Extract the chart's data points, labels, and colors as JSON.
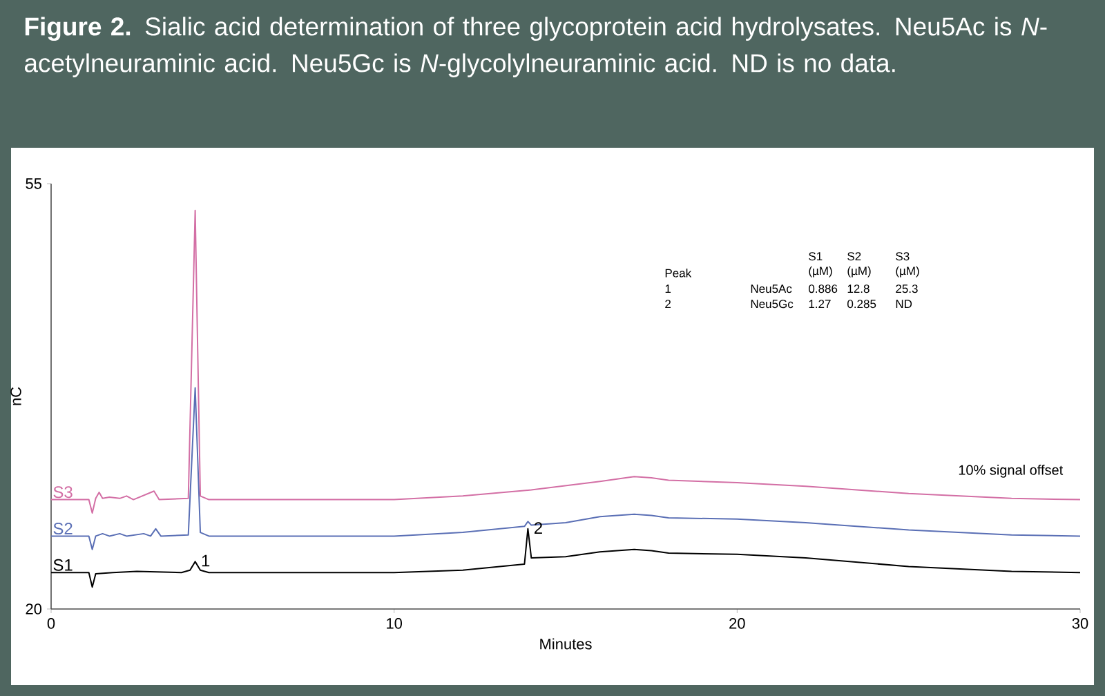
{
  "chart_data": {
    "type": "line",
    "title": "**Figure 2.** Sialic acid determination of three glycoprotein acid hydrolysates. Neu5Ac is *N*-acetylneuraminic acid. Neu5Gc is *N*-glycolylneuraminic acid. ND is no data.",
    "xlabel": "Minutes",
    "ylabel": "nC",
    "xlim": [
      0,
      30
    ],
    "ylim": [
      20,
      55
    ],
    "xticks": [
      0,
      10,
      20,
      30
    ],
    "yticks": [
      20,
      55
    ],
    "legend": false,
    "grid": false,
    "series": [
      {
        "name": "S1",
        "color": "#000000",
        "x": [
          0,
          1.1,
          1.2,
          1.3,
          1.8,
          2.5,
          3.8,
          4.05,
          4.2,
          4.35,
          4.6,
          8,
          10,
          12,
          13.8,
          13.9,
          14.0,
          15,
          16,
          17,
          17.5,
          18,
          20,
          22,
          25,
          28,
          30
        ],
        "values": [
          23.0,
          23.0,
          21.8,
          22.9,
          23.0,
          23.1,
          23.0,
          23.2,
          23.9,
          23.2,
          23.0,
          23.0,
          23.0,
          23.2,
          23.7,
          26.6,
          24.2,
          24.3,
          24.7,
          24.9,
          24.8,
          24.6,
          24.5,
          24.2,
          23.5,
          23.1,
          23.0
        ]
      },
      {
        "name": "S2",
        "color": "#5a6fb5",
        "x": [
          0,
          1.1,
          1.2,
          1.3,
          1.5,
          1.7,
          2.0,
          2.2,
          2.7,
          2.9,
          3.05,
          3.2,
          4.0,
          4.2,
          4.35,
          4.6,
          10,
          12,
          13.8,
          13.9,
          14.0,
          15,
          16,
          17,
          17.5,
          18,
          20,
          22,
          25,
          28,
          30
        ],
        "values": [
          26.0,
          26.0,
          24.9,
          26.0,
          26.2,
          26.0,
          26.2,
          26.0,
          26.2,
          26.0,
          26.6,
          26.0,
          26.1,
          38.2,
          26.3,
          26.0,
          26.0,
          26.3,
          26.8,
          27.2,
          26.9,
          27.1,
          27.6,
          27.8,
          27.7,
          27.5,
          27.4,
          27.1,
          26.5,
          26.1,
          26.0
        ]
      },
      {
        "name": "S3",
        "color": "#d36fa5",
        "x": [
          0,
          1.1,
          1.2,
          1.3,
          1.4,
          1.5,
          1.7,
          2.0,
          2.2,
          2.4,
          3.0,
          3.15,
          4.0,
          4.2,
          4.35,
          4.6,
          10,
          12,
          14,
          16,
          17,
          17.5,
          18,
          20,
          22,
          25,
          28,
          30
        ],
        "values": [
          29.0,
          29.0,
          27.9,
          29.1,
          29.6,
          29.1,
          29.2,
          29.1,
          29.3,
          29.0,
          29.7,
          29.0,
          29.1,
          52.8,
          29.3,
          29.0,
          29.0,
          29.3,
          29.8,
          30.5,
          30.9,
          30.8,
          30.6,
          30.4,
          30.1,
          29.5,
          29.1,
          29.0
        ]
      }
    ],
    "annotations": [
      {
        "text": "1",
        "x": 4.2,
        "y": 23.9
      },
      {
        "text": "2",
        "x": 13.9,
        "y": 26.6
      },
      "10% signal offset",
      "Peak",
      "S1 (µM)",
      "S2 (µM)",
      "S3 (µM)",
      "1",
      "Neu5Ac",
      "0.886",
      "12.8",
      "25.3",
      "2",
      "Neu5Gc",
      "1.27",
      "0.285",
      "ND"
    ]
  }
}
